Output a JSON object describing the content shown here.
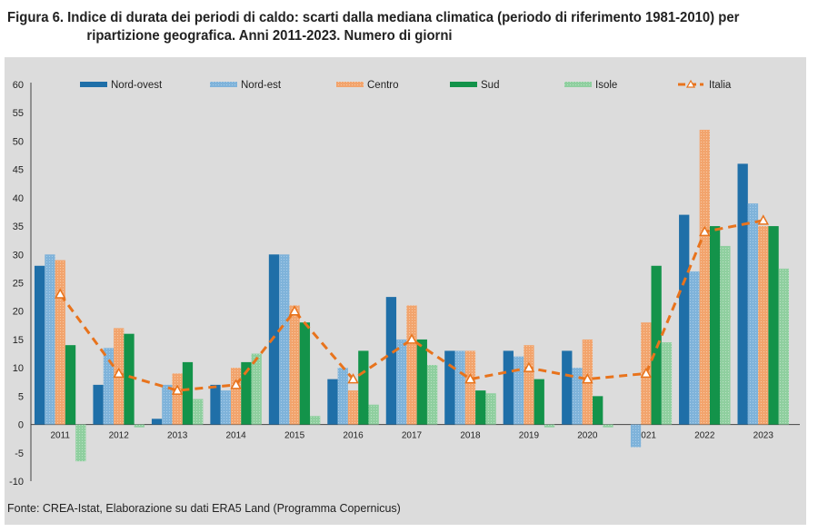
{
  "title": {
    "line1": "Figura 6. Indice di durata dei periodi di caldo: scarti dalla mediana climatica (periodo di riferimento 1981-2010) per",
    "line2": "ripartizione geografica. Anni 2011-2023. Numero di giorni"
  },
  "source": "Fonte: CREA-Istat, Elaborazione su dati ERA5 Land (Programma Copernicus)",
  "chart_data": {
    "type": "bar",
    "categories": [
      "2011",
      "2012",
      "2013",
      "2014",
      "2015",
      "2016",
      "2017",
      "2018",
      "2019",
      "2020",
      "2021",
      "2022",
      "2023"
    ],
    "series": [
      {
        "name": "Nord-ovest",
        "color": "#1f6fa8",
        "values": [
          28,
          7,
          1,
          7,
          30,
          8,
          22.5,
          13,
          13,
          13,
          0,
          37,
          46
        ]
      },
      {
        "name": "Nord-est",
        "color": "#7fb3da",
        "values": [
          30,
          13.5,
          7,
          6,
          30,
          10,
          15,
          13,
          12,
          10,
          -4,
          27,
          39
        ]
      },
      {
        "name": "Centro",
        "color": "#f2a46d",
        "values": [
          29,
          17,
          9,
          10,
          21,
          6,
          21,
          13,
          14,
          15,
          18,
          52,
          35
        ]
      },
      {
        "name": "Sud",
        "color": "#13934a",
        "values": [
          14,
          16,
          11,
          11,
          18,
          13,
          15,
          6,
          8,
          5,
          28,
          35,
          35
        ]
      },
      {
        "name": "Isole",
        "color": "#8fcf9f",
        "values": [
          -6.5,
          -0.5,
          4.5,
          12.5,
          1.5,
          3.5,
          10.5,
          5.5,
          -0.5,
          -0.5,
          14.5,
          31.5,
          27.5
        ]
      }
    ],
    "line": {
      "name": "Italia",
      "color": "#e8731c",
      "values": [
        23,
        9,
        6,
        7,
        20,
        8,
        15,
        8,
        10,
        8,
        9,
        34,
        36
      ]
    },
    "ylim": [
      -10,
      60
    ],
    "yticks": [
      -10,
      -5,
      0,
      5,
      10,
      15,
      20,
      25,
      30,
      35,
      40,
      45,
      50,
      55,
      60
    ],
    "legend_position": "top",
    "grid": false
  }
}
